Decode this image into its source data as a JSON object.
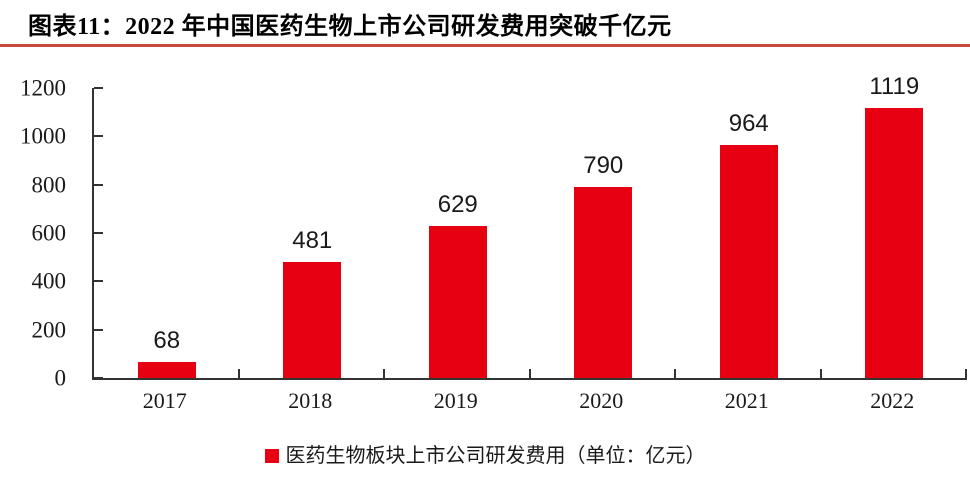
{
  "page": {
    "title": "图表11：2022 年中国医药生物上市公司研发费用突破千亿元"
  },
  "chart_data": {
    "type": "bar",
    "title": "图表11：2022 年中国医药生物上市公司研发费用突破千亿元",
    "categories": [
      "2017",
      "2018",
      "2019",
      "2020",
      "2021",
      "2022"
    ],
    "values": [
      68,
      481,
      629,
      790,
      964,
      1119
    ],
    "series_name": "医药生物板块上市公司研发费用（单位：亿元）",
    "unit": "亿元",
    "ylim": [
      0,
      1200
    ],
    "yticks": [
      0,
      200,
      400,
      600,
      800,
      1000,
      1200
    ],
    "data_labels": [
      68,
      481,
      629,
      790,
      964,
      1119
    ],
    "grid": false,
    "legend_position": "bottom",
    "colors": {
      "bar": "#e60012",
      "title_rule": "#c8483f",
      "axis": "#333333",
      "text": "#1a1a1a"
    }
  }
}
